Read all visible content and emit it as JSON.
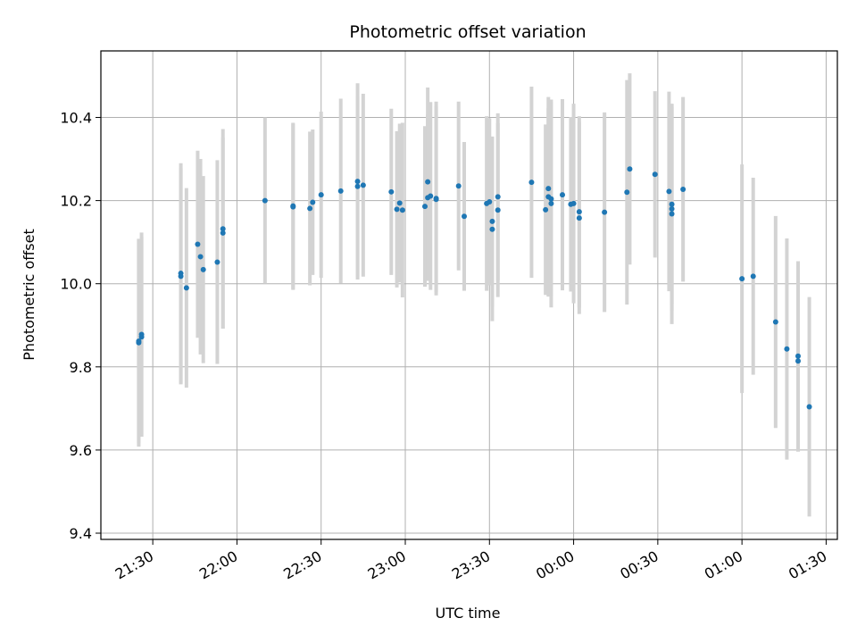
{
  "chart_data": {
    "type": "scatter",
    "title": "Photometric offset variation",
    "xlabel": "UTC time",
    "ylabel": "Photometric offset",
    "x_ticks": [
      "21:30",
      "22:00",
      "22:30",
      "23:00",
      "23:30",
      "00:00",
      "00:30",
      "01:00",
      "01:30"
    ],
    "y_ticks": [
      "9.4",
      "9.6",
      "9.8",
      "10.0",
      "10.2",
      "10.4"
    ],
    "x_tick_minutes": [
      1290,
      1320,
      1350,
      1380,
      1410,
      1440,
      1470,
      1500,
      1530
    ],
    "y_tick_values": [
      9.4,
      9.6,
      9.8,
      10.0,
      10.2,
      10.4
    ],
    "xlim_minutes": [
      1271.5,
      1534
    ],
    "ylim": [
      9.385,
      10.56
    ],
    "grid": true,
    "marker_color": "#1f77b4",
    "errorbar_color": "#d3d3d3",
    "series": [
      {
        "x_utc": [
          "21:25",
          "21:25",
          "21:26",
          "21:26",
          "21:40",
          "21:40",
          "21:42",
          "21:46",
          "21:47",
          "21:48",
          "21:53",
          "21:55",
          "21:55",
          "22:10",
          "22:20",
          "22:20",
          "22:26",
          "22:27",
          "22:30",
          "22:37",
          "22:43",
          "22:43",
          "22:45",
          "22:55",
          "22:57",
          "22:58",
          "22:59",
          "23:07",
          "23:08",
          "23:08",
          "23:09",
          "23:11",
          "23:11",
          "23:19",
          "23:21",
          "23:29",
          "23:30",
          "23:31",
          "23:31",
          "23:33",
          "23:33",
          "23:45",
          "23:50",
          "23:51",
          "23:51",
          "23:52",
          "23:52",
          "23:56",
          "23:59",
          "24:00",
          "24:02",
          "24:02",
          "24:11",
          "24:19",
          "24:20",
          "24:29",
          "24:34",
          "24:35",
          "24:35",
          "24:35",
          "24:39",
          "25:00",
          "25:04",
          "25:12",
          "25:16",
          "25:20",
          "25:20",
          "25:24"
        ],
        "y": [
          9.858,
          9.862,
          9.872,
          9.878,
          10.025,
          10.018,
          9.99,
          10.095,
          10.065,
          10.034,
          10.052,
          10.132,
          10.122,
          10.2,
          10.185,
          10.187,
          10.181,
          10.196,
          10.214,
          10.223,
          10.246,
          10.234,
          10.237,
          10.221,
          10.179,
          10.194,
          10.177,
          10.186,
          10.207,
          10.245,
          10.211,
          10.205,
          10.203,
          10.235,
          10.162,
          10.193,
          10.197,
          10.15,
          10.131,
          10.177,
          10.209,
          10.244,
          10.178,
          10.229,
          10.209,
          10.193,
          10.204,
          10.214,
          10.191,
          10.193,
          10.158,
          10.173,
          10.172,
          10.22,
          10.276,
          10.263,
          10.222,
          10.191,
          10.168,
          10.18,
          10.227,
          10.012,
          10.018,
          9.908,
          9.843,
          9.826,
          9.814,
          9.704
        ],
        "err": [
          0.25,
          0.245,
          0.24,
          0.245,
          0.265,
          0.26,
          0.24,
          0.225,
          0.235,
          0.225,
          0.245,
          0.24,
          0.23,
          0.2,
          0.2,
          0.2,
          0.185,
          0.175,
          0.2,
          0.222,
          0.236,
          0.216,
          0.22,
          0.2,
          0.188,
          0.191,
          0.21,
          0.193,
          0.2,
          0.227,
          0.226,
          0.233,
          0.223,
          0.203,
          0.179,
          0.21,
          0.201,
          0.204,
          0.221,
          0.209,
          0.201,
          0.23,
          0.205,
          0.193,
          0.24,
          0.25,
          0.233,
          0.23,
          0.21,
          0.24,
          0.231,
          0.23,
          0.24,
          0.27,
          0.23,
          0.2,
          0.24,
          0.24,
          0.265,
          0.245,
          0.222,
          0.275,
          0.237,
          0.255,
          0.266,
          0.228,
          0.218,
          0.264
        ]
      }
    ]
  }
}
